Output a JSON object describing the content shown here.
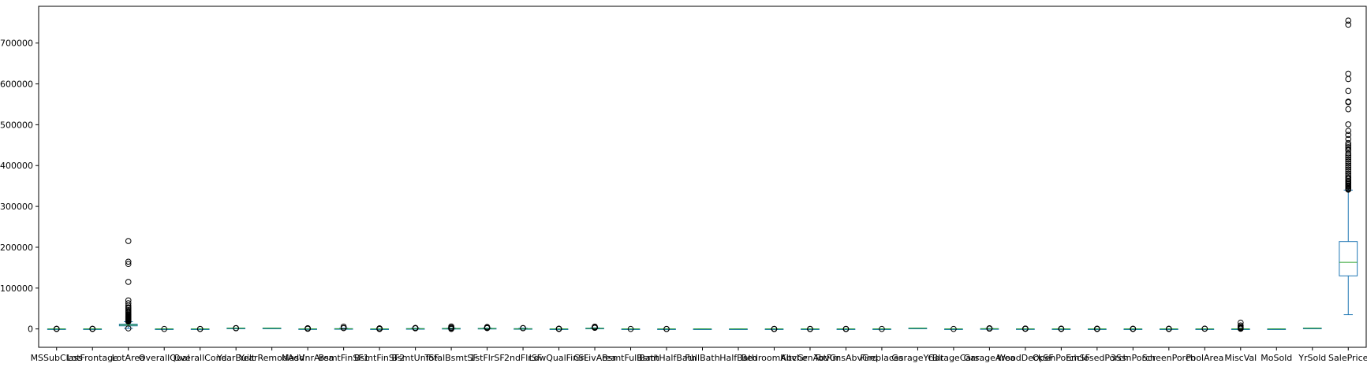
{
  "chart_data": {
    "type": "box",
    "ylim": [
      -45000,
      790000
    ],
    "yticks": [
      0,
      100000,
      200000,
      300000,
      400000,
      500000,
      600000,
      700000
    ],
    "ytick_labels": [
      "0",
      "100000",
      "200000",
      "300000",
      "400000",
      "500000",
      "600000",
      "700000"
    ],
    "grid": false,
    "legend": "none",
    "colors": {
      "box": "#1f77b4",
      "median": "#2ca02c",
      "outlier": "#000000"
    },
    "categories": [
      "MSSubClass",
      "LotFrontage",
      "LotArea",
      "OverallQual",
      "OverallCond",
      "YearBuilt",
      "YearRemodAdd",
      "MasVnrArea",
      "BsmtFinSF1",
      "BsmtFinSF2",
      "BsmtUnfSF",
      "TotalBsmtSF",
      "1stFlrSF",
      "2ndFlrSF",
      "LowQualFinSF",
      "GrLivArea",
      "BsmtFullBath",
      "BsmtHalfBath",
      "FullBath",
      "HalfBath",
      "BedroomAbvGr",
      "KitchenAbvGr",
      "TotRmsAbvGrd",
      "Fireplaces",
      "GarageYrBlt",
      "GarageCars",
      "GarageArea",
      "WoodDeckSF",
      "OpenPorchSF",
      "EnclosedPorch",
      "3SsnPorch",
      "ScreenPorch",
      "PoolArea",
      "MiscVal",
      "MoSold",
      "YrSold",
      "SalePrice"
    ],
    "boxes": [
      {
        "whislo": 20,
        "q1": 20,
        "med": 50,
        "q3": 70,
        "whishi": 145,
        "fliers": [
          160,
          180,
          190
        ]
      },
      {
        "whislo": 21,
        "q1": 59,
        "med": 69,
        "q3": 80,
        "whishi": 111,
        "fliers": [
          150,
          182,
          313
        ]
      },
      {
        "whislo": 1300,
        "q1": 7554,
        "med": 9478,
        "q3": 11602,
        "whishi": 17671,
        "fliers": [
          1300,
          18000,
          19000,
          20000,
          21000,
          22000,
          23000,
          24000,
          25000,
          26000,
          27000,
          28000,
          29000,
          30000,
          31000,
          33000,
          35000,
          37000,
          40000,
          43000,
          46000,
          50000,
          53000,
          57000,
          63000,
          70000,
          115149,
          159000,
          164660,
          215245
        ]
      },
      {
        "whislo": 2,
        "q1": 5,
        "med": 6,
        "q3": 7,
        "whishi": 10,
        "fliers": [
          1
        ]
      },
      {
        "whislo": 3,
        "q1": 5,
        "med": 5,
        "q3": 6,
        "whishi": 9,
        "fliers": [
          1,
          2
        ]
      },
      {
        "whislo": 1885,
        "q1": 1954,
        "med": 1973,
        "q3": 2000,
        "whishi": 2010,
        "fliers": [
          1872,
          1875,
          1880
        ]
      },
      {
        "whislo": 1950,
        "q1": 1967,
        "med": 1994,
        "q3": 2004,
        "whishi": 2010,
        "fliers": []
      },
      {
        "whislo": 0,
        "q1": 0,
        "med": 0,
        "q3": 166,
        "whishi": 415,
        "fliers": [
          500,
          700,
          900,
          1100,
          1378,
          1600
        ]
      },
      {
        "whislo": 0,
        "q1": 0,
        "med": 383,
        "q3": 712,
        "whishi": 1780,
        "fliers": [
          2096,
          2260,
          5644
        ]
      },
      {
        "whislo": 0,
        "q1": 0,
        "med": 0,
        "q3": 0,
        "whishi": 0,
        "fliers": [
          28,
          100,
          300,
          500,
          700,
          900,
          1127,
          1474
        ]
      },
      {
        "whislo": 0,
        "q1": 223,
        "med": 477,
        "q3": 808,
        "whishi": 1680,
        "fliers": [
          1700,
          1800,
          1900,
          2002,
          2153,
          2336
        ]
      },
      {
        "whislo": 105,
        "q1": 795,
        "med": 991,
        "q3": 1298,
        "whishi": 2046,
        "fliers": [
          0,
          2100,
          2300,
          2600,
          3000,
          3206,
          6110
        ]
      },
      {
        "whislo": 334,
        "q1": 882,
        "med": 1087,
        "q3": 1391,
        "whishi": 2155,
        "fliers": [
          2200,
          2400,
          2600,
          3138,
          4692
        ]
      },
      {
        "whislo": 0,
        "q1": 0,
        "med": 0,
        "q3": 728,
        "whishi": 1818,
        "fliers": [
          1872,
          2065
        ]
      },
      {
        "whislo": 0,
        "q1": 0,
        "med": 0,
        "q3": 0,
        "whishi": 0,
        "fliers": [
          53,
          200,
          400,
          572
        ]
      },
      {
        "whislo": 334,
        "q1": 1129,
        "med": 1464,
        "q3": 1776,
        "whishi": 2730,
        "fliers": [
          2800,
          3000,
          3300,
          3627,
          4476,
          4676,
          5642
        ]
      },
      {
        "whislo": 0,
        "q1": 0,
        "med": 0,
        "q3": 1,
        "whishi": 2,
        "fliers": [
          3
        ]
      },
      {
        "whislo": 0,
        "q1": 0,
        "med": 0,
        "q3": 0,
        "whishi": 0,
        "fliers": [
          1,
          2
        ]
      },
      {
        "whislo": 0,
        "q1": 1,
        "med": 2,
        "q3": 2,
        "whishi": 3,
        "fliers": []
      },
      {
        "whislo": 0,
        "q1": 0,
        "med": 0,
        "q3": 1,
        "whishi": 2,
        "fliers": []
      },
      {
        "whislo": 1,
        "q1": 2,
        "med": 3,
        "q3": 3,
        "whishi": 4,
        "fliers": [
          0,
          5,
          6,
          8
        ]
      },
      {
        "whislo": 1,
        "q1": 1,
        "med": 1,
        "q3": 1,
        "whishi": 1,
        "fliers": [
          0,
          2,
          3
        ]
      },
      {
        "whislo": 3,
        "q1": 5,
        "med": 6,
        "q3": 7,
        "whishi": 10,
        "fliers": [
          2,
          11,
          12,
          14
        ]
      },
      {
        "whislo": 0,
        "q1": 0,
        "med": 1,
        "q3": 1,
        "whishi": 2,
        "fliers": [
          3
        ]
      },
      {
        "whislo": 1900,
        "q1": 1961,
        "med": 1980,
        "q3": 2002,
        "whishi": 2010,
        "fliers": []
      },
      {
        "whislo": 0,
        "q1": 1,
        "med": 2,
        "q3": 2,
        "whishi": 3,
        "fliers": [
          4
        ]
      },
      {
        "whislo": 0,
        "q1": 334,
        "med": 480,
        "q3": 576,
        "whishi": 938,
        "fliers": [
          954,
          1000,
          1069,
          1248,
          1390,
          1418
        ]
      },
      {
        "whislo": 0,
        "q1": 0,
        "med": 0,
        "q3": 168,
        "whishi": 420,
        "fliers": [
          430,
          500,
          600,
          736,
          857
        ]
      },
      {
        "whislo": 0,
        "q1": 0,
        "med": 25,
        "q3": 68,
        "whishi": 170,
        "fliers": [
          180,
          250,
          350,
          547
        ]
      },
      {
        "whislo": 0,
        "q1": 0,
        "med": 0,
        "q3": 0,
        "whishi": 0,
        "fliers": [
          19,
          100,
          200,
          386,
          552
        ]
      },
      {
        "whislo": 0,
        "q1": 0,
        "med": 0,
        "q3": 0,
        "whishi": 0,
        "fliers": [
          23,
          200,
          508
        ]
      },
      {
        "whislo": 0,
        "q1": 0,
        "med": 0,
        "q3": 0,
        "whishi": 0,
        "fliers": [
          40,
          200,
          480
        ]
      },
      {
        "whislo": 0,
        "q1": 0,
        "med": 0,
        "q3": 0,
        "whishi": 0,
        "fliers": [
          480,
          738
        ]
      },
      {
        "whislo": 0,
        "q1": 0,
        "med": 0,
        "q3": 0,
        "whishi": 0,
        "fliers": [
          400,
          1000,
          2000,
          3500,
          5000,
          8300,
          15500
        ]
      },
      {
        "whislo": 1,
        "q1": 5,
        "med": 6,
        "q3": 8,
        "whishi": 12,
        "fliers": []
      },
      {
        "whislo": 2006,
        "q1": 2007,
        "med": 2008,
        "q3": 2009,
        "whishi": 2010,
        "fliers": []
      },
      {
        "whislo": 34900,
        "q1": 129975,
        "med": 163000,
        "q3": 214000,
        "whishi": 340000,
        "fliers": [
          341000,
          343000,
          345000,
          348000,
          350000,
          352000,
          355000,
          358000,
          360000,
          363000,
          367000,
          370000,
          375000,
          380000,
          385000,
          390000,
          395000,
          400000,
          405000,
          410000,
          415000,
          420000,
          425000,
          430000,
          437000,
          440000,
          445000,
          450000,
          455000,
          465000,
          475000,
          485000,
          501000,
          538000,
          555000,
          556581,
          582933,
          611657,
          625000,
          745000,
          755000
        ]
      }
    ]
  }
}
